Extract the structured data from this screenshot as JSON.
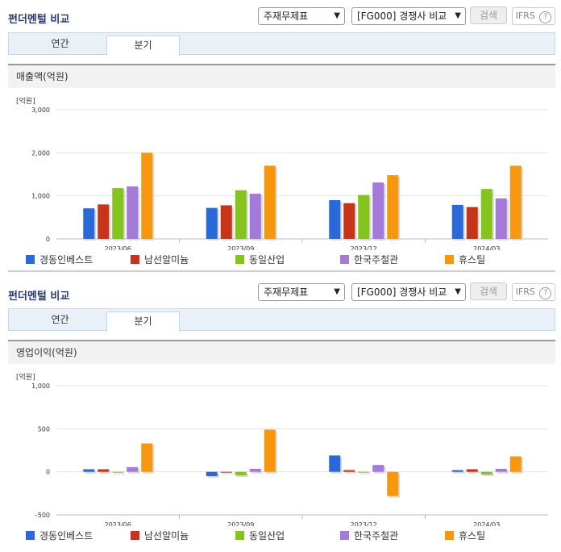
{
  "header": {
    "title": "펀더멘털 비교",
    "select_item": "주재무제표",
    "select_compare": "[FG000] 경쟁사 비교",
    "search_label": "검색",
    "ifrs_label": "IFRS",
    "help_symbol": "?"
  },
  "tabs": [
    {
      "label": "연간"
    },
    {
      "label": "분기"
    }
  ],
  "legend": [
    {
      "name": "경동인베스트",
      "color": "#2a6ad8"
    },
    {
      "name": "남선알미늄",
      "color": "#c8341a"
    },
    {
      "name": "동일산업",
      "color": "#84c41c"
    },
    {
      "name": "한국주철관",
      "color": "#a47ad8"
    },
    {
      "name": "휴스틸",
      "color": "#f7970f"
    }
  ],
  "chart_data": [
    {
      "type": "bar",
      "title": "매출액(억원)",
      "unit": "[억원]",
      "categories": [
        "2023/06",
        "2023/09",
        "2023/12",
        "2024/03"
      ],
      "ylim": [
        0,
        3000
      ],
      "yticks": [
        0,
        1000,
        2000,
        3000
      ],
      "ytick_labels": [
        "0",
        "1,000",
        "2,000",
        "3,000"
      ],
      "grid": true,
      "series": [
        {
          "name": "경동인베스트",
          "values": [
            710,
            720,
            900,
            790
          ]
        },
        {
          "name": "남선알미늄",
          "values": [
            800,
            780,
            830,
            740
          ]
        },
        {
          "name": "동일산업",
          "values": [
            1180,
            1130,
            1020,
            1160
          ]
        },
        {
          "name": "한국주철관",
          "values": [
            1220,
            1050,
            1310,
            940
          ]
        },
        {
          "name": "휴스틸",
          "values": [
            2000,
            1700,
            1480,
            1700
          ]
        }
      ]
    },
    {
      "type": "bar",
      "title": "영업이익(억원)",
      "unit": "[억원]",
      "categories": [
        "2023/06",
        "2023/09",
        "2023/12",
        "2024/03"
      ],
      "ylim": [
        -500,
        1000
      ],
      "yticks": [
        -500,
        0,
        500,
        1000
      ],
      "ytick_labels": [
        "-500",
        "0",
        "500",
        "1,000"
      ],
      "grid": true,
      "series": [
        {
          "name": "경동인베스트",
          "values": [
            30,
            -50,
            190,
            20
          ]
        },
        {
          "name": "남선알미늄",
          "values": [
            30,
            -10,
            20,
            30
          ]
        },
        {
          "name": "동일산업",
          "values": [
            -10,
            -40,
            -10,
            -30
          ]
        },
        {
          "name": "한국주철관",
          "values": [
            55,
            35,
            80,
            35
          ]
        },
        {
          "name": "휴스틸",
          "values": [
            330,
            490,
            -280,
            180
          ]
        }
      ]
    }
  ]
}
